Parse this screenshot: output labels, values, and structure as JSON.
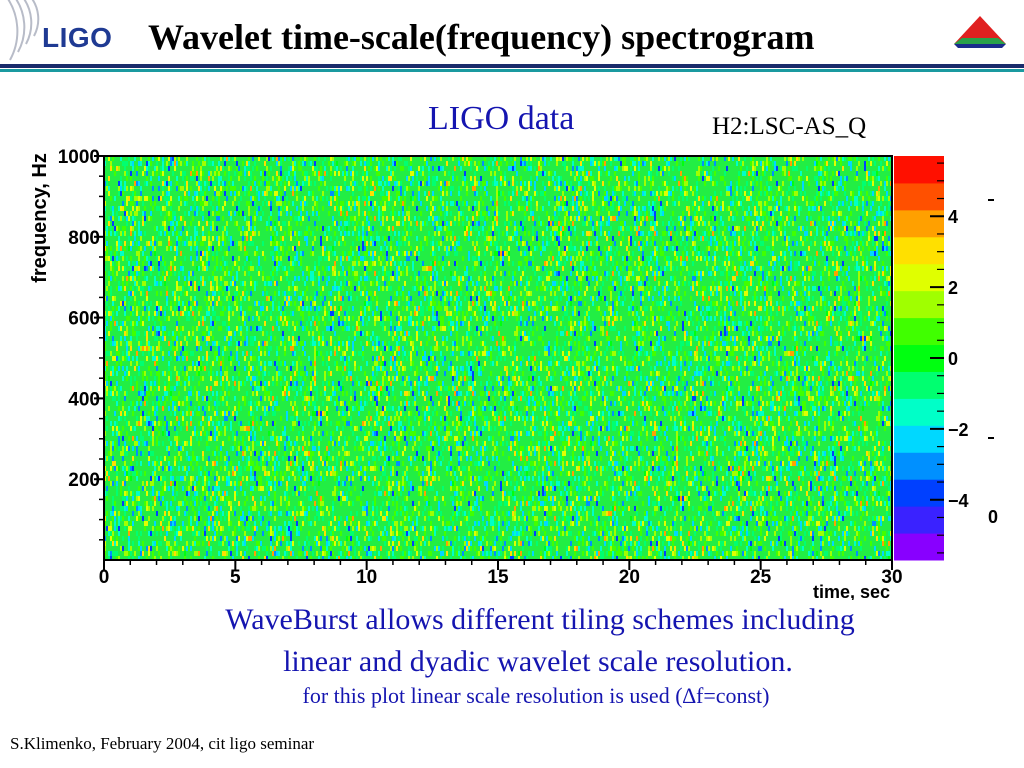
{
  "header": {
    "logo_text": "LIGO",
    "title": "Wavelet time-scale(frequency) spectrogram",
    "colors": {
      "logo": "#1f3a93",
      "rule_dark": "#1a2b6b",
      "rule_teal": "#1a9aa0"
    }
  },
  "plot_title": "LIGO data",
  "channel": "H2:LSC-AS_Q",
  "chart_data": {
    "type": "heatmap",
    "title": "LIGO data",
    "channel": "H2:LSC-AS_Q",
    "xlabel": "time, sec",
    "ylabel": "frequency, Hz",
    "xlim": [
      0,
      30
    ],
    "ylim": [
      0,
      1000
    ],
    "x_ticks": [
      "0",
      "5",
      "10",
      "15",
      "20",
      "25",
      "30"
    ],
    "y_ticks": [
      "200",
      "400",
      "600",
      "800",
      "1000"
    ],
    "colorbar": {
      "range": [
        -5.7,
        5.7
      ],
      "ticks": [
        "4",
        "2",
        "0",
        "−2",
        "−4"
      ],
      "colors": [
        "#8800ff",
        "#3a22ff",
        "#0040ff",
        "#0090ff",
        "#00d8ff",
        "#00ffc8",
        "#00ff70",
        "#00ff10",
        "#40ff00",
        "#a0ff00",
        "#e0ff00",
        "#ffe000",
        "#ffa000",
        "#ff5000",
        "#ff1000"
      ]
    },
    "dominant_value": 0,
    "field_color": "#22ee44",
    "description_values": {
      "grid": false,
      "legend": "colorbar-right"
    }
  },
  "caption": {
    "line1": "WaveBurst allows different tiling schemes including",
    "line2": "linear and dyadic wavelet scale resolution.",
    "line3": "for this plot linear scale resolution is used (∆f=const)"
  },
  "footer": "S.Klimenko, February 2004, cit ligo seminar"
}
